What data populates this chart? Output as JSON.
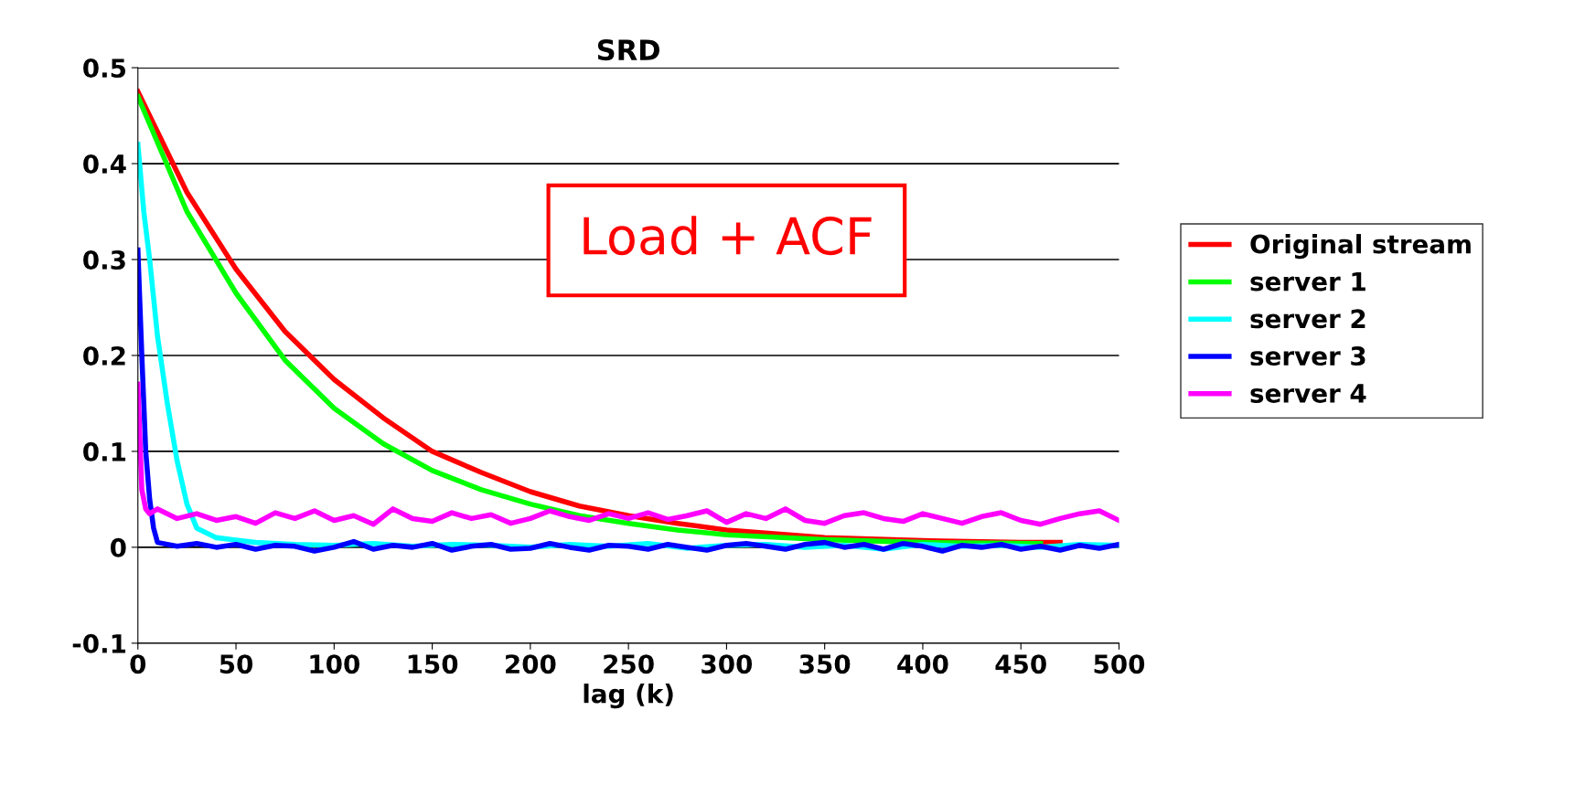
{
  "chart_data": {
    "type": "line",
    "title": "SRD",
    "xlabel": "lag (k)",
    "xlim": [
      0,
      500
    ],
    "xticks": [
      0,
      50,
      100,
      150,
      200,
      250,
      300,
      350,
      400,
      450,
      500
    ],
    "ylim": [
      -0.1,
      0.5
    ],
    "yticks": [
      -0.1,
      {
        "value": 0,
        "label": "0"
      },
      0.1,
      0.2,
      0.3,
      0.4,
      0.5
    ],
    "grid": "y",
    "legend": "right",
    "marker": "none",
    "line_style": "solid",
    "annotations": [
      "Load + ACF"
    ],
    "series": [
      {
        "name": "Original stream",
        "color": "#ff0000",
        "x": [
          0,
          25,
          50,
          75,
          100,
          125,
          150,
          175,
          200,
          225,
          250,
          275,
          300,
          350,
          400,
          450,
          470
        ],
        "values": [
          0.475,
          0.37,
          0.29,
          0.225,
          0.175,
          0.135,
          0.1,
          0.078,
          0.058,
          0.043,
          0.033,
          0.025,
          0.018,
          0.01,
          0.007,
          0.005,
          0.005
        ]
      },
      {
        "name": "server 1",
        "color": "#00ff00",
        "x": [
          0,
          25,
          50,
          75,
          100,
          125,
          150,
          175,
          200,
          225,
          250,
          275,
          300,
          350,
          400,
          460
        ],
        "values": [
          0.47,
          0.35,
          0.265,
          0.195,
          0.145,
          0.108,
          0.08,
          0.06,
          0.045,
          0.033,
          0.025,
          0.018,
          0.013,
          0.008,
          0.005,
          0.004
        ]
      },
      {
        "name": "server 2",
        "color": "#00ffff",
        "x": [
          0,
          3,
          6,
          10,
          15,
          20,
          25,
          30,
          40,
          60,
          80,
          100,
          120,
          140,
          160,
          180,
          200,
          220,
          240,
          260,
          280,
          300,
          320,
          340,
          360,
          380,
          400,
          420,
          440,
          460,
          480,
          500
        ],
        "values": [
          0.42,
          0.35,
          0.3,
          0.22,
          0.15,
          0.09,
          0.045,
          0.02,
          0.01,
          0.005,
          0.003,
          0.002,
          0.004,
          0.001,
          0.003,
          0.002,
          0.0,
          0.003,
          0.001,
          0.004,
          -0.001,
          0.002,
          0.003,
          0.0,
          0.002,
          -0.002,
          0.003,
          0.001,
          0.002,
          0.0,
          0.003,
          0.002
        ]
      },
      {
        "name": "server 3",
        "color": "#0000ff",
        "x": [
          0,
          2,
          4,
          6,
          8,
          10,
          20,
          30,
          40,
          50,
          60,
          70,
          80,
          90,
          100,
          110,
          120,
          130,
          140,
          150,
          160,
          170,
          180,
          190,
          200,
          210,
          220,
          230,
          240,
          250,
          260,
          270,
          280,
          290,
          300,
          310,
          320,
          330,
          340,
          350,
          360,
          370,
          380,
          390,
          400,
          410,
          420,
          430,
          440,
          450,
          460,
          470,
          480,
          490,
          500
        ],
        "values": [
          0.31,
          0.2,
          0.1,
          0.05,
          0.02,
          0.005,
          0.001,
          0.004,
          0.0,
          0.003,
          -0.002,
          0.002,
          0.001,
          -0.004,
          0.0,
          0.006,
          -0.002,
          0.002,
          0.0,
          0.004,
          -0.003,
          0.001,
          0.003,
          -0.002,
          -0.001,
          0.004,
          0.0,
          -0.003,
          0.002,
          0.001,
          -0.002,
          0.003,
          0.0,
          -0.003,
          0.002,
          0.004,
          0.001,
          -0.002,
          0.003,
          0.005,
          0.0,
          0.003,
          -0.002,
          0.004,
          0.001,
          -0.004,
          0.002,
          0.0,
          0.003,
          -0.002,
          0.001,
          -0.003,
          0.002,
          -0.001,
          0.003
        ]
      },
      {
        "name": "server 4",
        "color": "#ff00ff",
        "x": [
          0,
          2,
          4,
          6,
          10,
          20,
          30,
          40,
          50,
          60,
          70,
          80,
          90,
          100,
          110,
          120,
          130,
          140,
          150,
          160,
          170,
          180,
          190,
          200,
          210,
          220,
          230,
          240,
          250,
          260,
          270,
          280,
          290,
          300,
          310,
          320,
          330,
          340,
          350,
          360,
          370,
          380,
          390,
          400,
          410,
          420,
          430,
          440,
          450,
          460,
          470,
          480,
          490,
          500
        ],
        "values": [
          0.17,
          0.06,
          0.04,
          0.035,
          0.04,
          0.03,
          0.035,
          0.028,
          0.032,
          0.025,
          0.036,
          0.03,
          0.038,
          0.028,
          0.033,
          0.024,
          0.04,
          0.03,
          0.027,
          0.036,
          0.03,
          0.034,
          0.025,
          0.03,
          0.038,
          0.032,
          0.028,
          0.035,
          0.03,
          0.036,
          0.029,
          0.033,
          0.038,
          0.026,
          0.035,
          0.03,
          0.04,
          0.028,
          0.025,
          0.033,
          0.036,
          0.03,
          0.027,
          0.035,
          0.03,
          0.025,
          0.032,
          0.036,
          0.028,
          0.024,
          0.03,
          0.035,
          0.038,
          0.028
        ]
      }
    ]
  }
}
